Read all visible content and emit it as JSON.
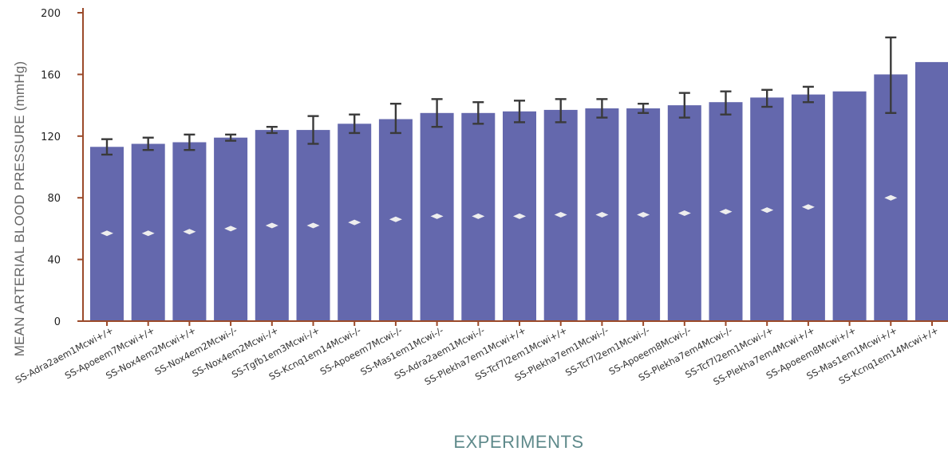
{
  "chart_data": {
    "type": "bar",
    "title": "",
    "xlabel": "EXPERIMENTS",
    "ylabel": "MEAN ARTERIAL BLOOD PRESSURE (mmHg)",
    "ylim": [
      0,
      200
    ],
    "yticks": [
      "0",
      "40",
      "80",
      "120",
      "160",
      "200"
    ],
    "grid": false,
    "legend": "none",
    "colors": {
      "bar": "#6468ad",
      "axis": "#9b4a2a",
      "error_bar": "#3a3a3a",
      "marker": "#eeeeee"
    },
    "categories": [
      "SS-Adra2aem1Mcwi+/+",
      "SS-Apoeem7Mcwi+/+",
      "SS-Nox4em2Mcwi+/+",
      "SS-Nox4em2Mcwi-/-",
      "SS-Nox4em2Mcwi-/+",
      "SS-Tgfb1em3Mcwi-/+",
      "SS-Kcnq1em14Mcwi-/-",
      "SS-Apoeem7Mcwi-/-",
      "SS-Mas1em1Mcwi-/-",
      "SS-Adra2aem1Mcwi-/-",
      "SS-Plekha7em1Mcwi+/+",
      "SS-Tcf7l2em1Mcwi+/+",
      "SS-Plekha7em1Mcwi-/-",
      "SS-Tcf7l2em1Mcwi-/-",
      "SS-Apoeem8Mcwi-/-",
      "SS-Plekha7em4Mcwi-/-",
      "SS-Tcf7l2em1Mcwi-/+",
      "SS-Plekha7em4Mcwi+/+",
      "SS-Apoeem8Mcwi+/+",
      "SS-Mas1em1Mcwi+/+",
      "SS-Kcnq1em14Mcwi+/+"
    ],
    "values": [
      113,
      115,
      116,
      119,
      124,
      124,
      128,
      131,
      135,
      135,
      136,
      137,
      138,
      138,
      140,
      142,
      145,
      147,
      149,
      160,
      168
    ],
    "error_low": [
      108,
      111,
      111,
      117,
      122,
      115,
      122,
      122,
      126,
      128,
      129,
      129,
      132,
      135,
      132,
      134,
      139,
      142,
      null,
      135,
      null
    ],
    "error_high": [
      118,
      119,
      121,
      121,
      126,
      133,
      134,
      141,
      144,
      142,
      143,
      144,
      144,
      141,
      148,
      149,
      150,
      152,
      null,
      184,
      null
    ],
    "markers": [
      57,
      57,
      58,
      60,
      62,
      62,
      64,
      66,
      68,
      68,
      68,
      69,
      69,
      69,
      70,
      71,
      72,
      74,
      null,
      80,
      null
    ]
  }
}
